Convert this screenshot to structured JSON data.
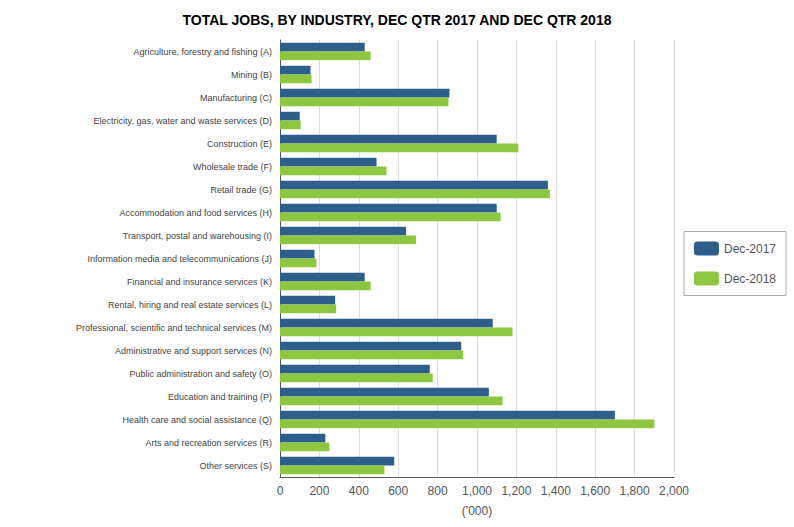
{
  "chart_data": {
    "type": "bar",
    "orientation": "horizontal",
    "title": "TOTAL JOBS, BY INDUSTRY, DEC QTR 2017 AND DEC QTR 2018",
    "categories": [
      "Agriculture, forestry and fishing (A)",
      "Mining (B)",
      "Manufacturing (C)",
      "Electricity, gas, water and waste services (D)",
      "Construction (E)",
      "Wholesale trade (F)",
      "Retail trade (G)",
      "Accommodation and food services (H)",
      "Transport, postal and warehousing (I)",
      "Information media and telecommunications (J)",
      "Financial and insurance services (K)",
      "Rental, hiring and real estate services (L)",
      "Professional, scientific and technical services (M)",
      "Administrative and support services (N)",
      "Public administration and safety (O)",
      "Education and training (P)",
      "Health care and social assistance (Q)",
      "Arts and recreation services (R)",
      "Other services (S)"
    ],
    "series": [
      {
        "name": "Dec-2017",
        "color": "#2E5F8A",
        "values": [
          430,
          155,
          860,
          100,
          1100,
          490,
          1360,
          1100,
          640,
          175,
          430,
          280,
          1080,
          920,
          760,
          1060,
          1700,
          230,
          580
        ]
      },
      {
        "name": "Dec-2018",
        "color": "#8DC63F",
        "values": [
          460,
          160,
          855,
          105,
          1210,
          540,
          1370,
          1120,
          690,
          185,
          460,
          285,
          1180,
          930,
          775,
          1130,
          1900,
          250,
          530
        ]
      }
    ],
    "xlabel": "('000)",
    "xlim": [
      0,
      2000
    ],
    "xticks": [
      0,
      200,
      400,
      600,
      800,
      {
        "value": 1000,
        "label": "1,000"
      },
      {
        "value": 1200,
        "label": "1,200"
      },
      {
        "value": 1400,
        "label": "1,400"
      },
      {
        "value": 1600,
        "label": "1,600"
      },
      {
        "value": 1800,
        "label": "1,800"
      },
      {
        "value": 2000,
        "label": "2,000"
      }
    ],
    "grid": true,
    "legend": "right"
  }
}
